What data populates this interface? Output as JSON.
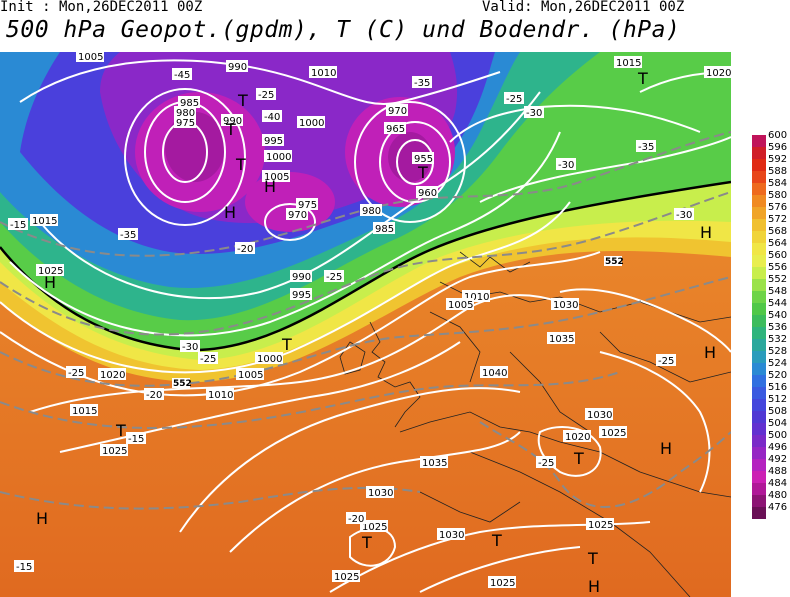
{
  "header": {
    "init_text": "Init : Mon,26DEC2011 00Z",
    "valid_text": "Valid: Mon,26DEC2011 00Z",
    "title": "500 hPa Geopot.(gpdm), T (C) und Bodendr. (hPa)"
  },
  "legend": {
    "ticks": [
      "600",
      "596",
      "592",
      "588",
      "584",
      "580",
      "576",
      "572",
      "568",
      "564",
      "560",
      "556",
      "552",
      "548",
      "544",
      "540",
      "536",
      "532",
      "528",
      "524",
      "520",
      "516",
      "512",
      "508",
      "504",
      "500",
      "496",
      "492",
      "488",
      "484",
      "480",
      "476"
    ],
    "colors": [
      "#c0145a",
      "#d01e28",
      "#e02a14",
      "#e8461a",
      "#ee6a1e",
      "#f08a22",
      "#f0a428",
      "#f0c030",
      "#f0d43a",
      "#f0e646",
      "#e8ee4e",
      "#c8ee4c",
      "#9ae24a",
      "#6ed448",
      "#50c848",
      "#3cbc5c",
      "#2eb47c",
      "#2aa89c",
      "#2a9cbc",
      "#2a8ad4",
      "#3070e0",
      "#3a5ae0",
      "#4446dc",
      "#5038d4",
      "#6230d0",
      "#7a2ac8",
      "#9626c4",
      "#b422c0",
      "#cc20b4",
      "#b01898",
      "#8c1474",
      "#6a1056"
    ]
  },
  "map_data": {
    "pressure_labels": [
      "1005",
      "990",
      "1010",
      "1015",
      "1020",
      "985",
      "980",
      "975",
      "990",
      "1000",
      "995",
      "1005",
      "1000",
      "970",
      "965",
      "955",
      "960",
      "980",
      "985",
      "975",
      "970",
      "990",
      "995",
      "1015",
      "1025",
      "1030",
      "1035",
      "1040",
      "1025",
      "1030",
      "1020",
      "1000",
      "1005",
      "1010",
      "1015",
      "1020",
      "1025",
      "1035",
      "1030",
      "1025",
      "1030",
      "1025",
      "1010",
      "1005",
      "1025",
      "1025"
    ],
    "temperature_labels": [
      "-45",
      "-25",
      "-40",
      "-35",
      "-30",
      "-25",
      "-15",
      "-20",
      "-35",
      "-30",
      "-25",
      "-25",
      "-30",
      "-35",
      "-25",
      "-20",
      "-15",
      "-20",
      "-25",
      "-30",
      "-25",
      "-15"
    ],
    "geopotential_labels": [
      "552",
      "552"
    ],
    "high_markers": [
      "H",
      "H",
      "H",
      "H",
      "H",
      "H",
      "H",
      "H"
    ],
    "low_markers": [
      "T",
      "T",
      "T",
      "T",
      "T",
      "T",
      "T",
      "T",
      "T",
      "T",
      "T"
    ]
  }
}
